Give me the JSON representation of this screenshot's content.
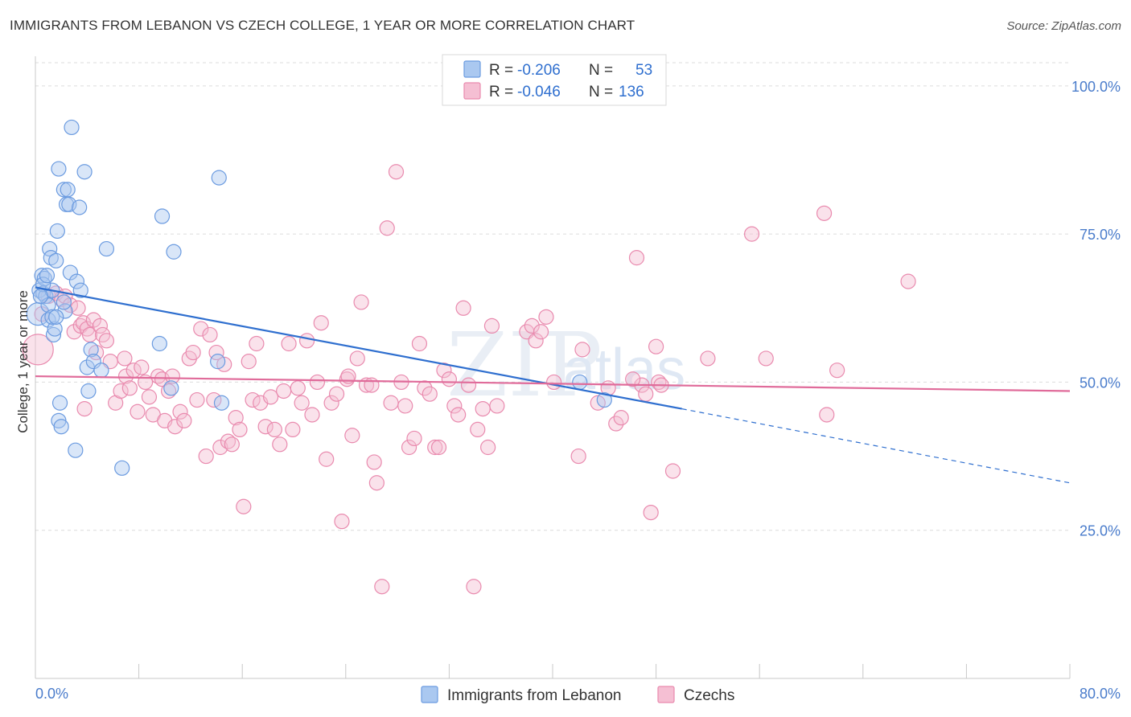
{
  "title": "IMMIGRANTS FROM LEBANON VS CZECH COLLEGE, 1 YEAR OR MORE CORRELATION CHART",
  "source": "Source: ZipAtlas.com",
  "watermark": {
    "zip": "ZIP",
    "atlas": "atlas"
  },
  "colors": {
    "blue": "#6b9be0",
    "blue_fill": "#aac8f0",
    "pink": "#e98aae",
    "pink_fill": "#f5bfd3",
    "blue_line": "#2f6fcf",
    "pink_line": "#e06b9a",
    "axis_text": "#4a7ccb"
  },
  "legend": {
    "rows": [
      {
        "r_label": "R = ",
        "r_value": "-0.206",
        "n_label": "N = ",
        "n_value": "53"
      },
      {
        "r_label": "R = ",
        "r_value": "-0.046",
        "n_label": "N = ",
        "n_value": "136"
      }
    ]
  },
  "chart_data": {
    "type": "scatter",
    "title": "IMMIGRANTS FROM LEBANON VS CZECH COLLEGE, 1 YEAR OR MORE CORRELATION CHART",
    "xlabel": "",
    "ylabel": "College, 1 year or more",
    "xlim": [
      0,
      80
    ],
    "ylim": [
      0,
      105
    ],
    "x_tick_labels": [
      "0.0%",
      "80.0%"
    ],
    "y_tick_labels": [
      "25.0%",
      "50.0%",
      "75.0%",
      "100.0%"
    ],
    "y_ticks": [
      25,
      50,
      75,
      100
    ],
    "grid": true,
    "legend_position": "top-center",
    "series": [
      {
        "name": "Immigrants from Lebanon",
        "color": "#6b9be0",
        "points": [
          [
            0.2,
            61.5
          ],
          [
            0.3,
            65.5
          ],
          [
            0.5,
            68
          ],
          [
            0.6,
            65
          ],
          [
            0.7,
            67.5
          ],
          [
            0.8,
            64.5
          ],
          [
            1.0,
            60.5
          ],
          [
            1.1,
            72.5
          ],
          [
            1.2,
            71
          ],
          [
            1.3,
            65.5
          ],
          [
            1.4,
            58
          ],
          [
            1.5,
            59
          ],
          [
            1.6,
            70.5
          ],
          [
            1.7,
            75.5
          ],
          [
            1.8,
            86
          ],
          [
            1.8,
            43.5
          ],
          [
            1.9,
            46.5
          ],
          [
            2.0,
            42.5
          ],
          [
            2.2,
            82.5
          ],
          [
            2.3,
            62
          ],
          [
            2.4,
            80
          ],
          [
            2.5,
            82.5
          ],
          [
            2.6,
            80
          ],
          [
            2.7,
            68.5
          ],
          [
            2.8,
            93
          ],
          [
            3.1,
            38.5
          ],
          [
            3.2,
            67
          ],
          [
            3.4,
            79.5
          ],
          [
            3.5,
            65.5
          ],
          [
            3.8,
            85.5
          ],
          [
            4.0,
            52.5
          ],
          [
            4.1,
            48.5
          ],
          [
            4.3,
            55.5
          ],
          [
            4.5,
            53.5
          ],
          [
            5.1,
            52
          ],
          [
            5.5,
            72.5
          ],
          [
            6.7,
            35.5
          ],
          [
            9.6,
            56.5
          ],
          [
            9.8,
            78
          ],
          [
            10.5,
            49
          ],
          [
            10.7,
            72
          ],
          [
            14.1,
            53.5
          ],
          [
            14.2,
            84.5
          ],
          [
            14.4,
            46.5
          ],
          [
            42.1,
            50
          ],
          [
            44.0,
            47
          ],
          [
            0.6,
            66.5
          ],
          [
            1.0,
            63
          ],
          [
            1.3,
            61
          ],
          [
            0.9,
            68
          ],
          [
            2.2,
            63.5
          ],
          [
            1.6,
            61
          ],
          [
            0.4,
            64.5
          ]
        ],
        "trend": {
          "x": [
            0,
            50
          ],
          "y": [
            66,
            45.5
          ]
        },
        "trend_ext": {
          "x": [
            50,
            80
          ],
          "y": [
            45.5,
            33
          ]
        }
      },
      {
        "name": "Czechs",
        "color": "#e98aae",
        "points": [
          [
            0.2,
            55.5
          ],
          [
            0.5,
            61.5
          ],
          [
            1.0,
            64.5
          ],
          [
            1.6,
            65
          ],
          [
            2.0,
            64
          ],
          [
            2.3,
            64.5
          ],
          [
            2.7,
            63
          ],
          [
            3.0,
            58.5
          ],
          [
            3.3,
            62.5
          ],
          [
            3.5,
            59.5
          ],
          [
            3.7,
            60
          ],
          [
            4.0,
            59
          ],
          [
            4.2,
            58
          ],
          [
            4.5,
            60.5
          ],
          [
            4.7,
            55
          ],
          [
            5.0,
            59.5
          ],
          [
            5.2,
            58
          ],
          [
            5.5,
            57
          ],
          [
            5.8,
            53.5
          ],
          [
            6.2,
            46.5
          ],
          [
            6.6,
            48.5
          ],
          [
            7.0,
            51
          ],
          [
            7.3,
            49
          ],
          [
            7.6,
            52
          ],
          [
            7.9,
            45
          ],
          [
            8.2,
            52.5
          ],
          [
            8.5,
            50
          ],
          [
            8.8,
            47.5
          ],
          [
            9.1,
            44.5
          ],
          [
            9.5,
            51
          ],
          [
            9.8,
            50.5
          ],
          [
            10.0,
            43.5
          ],
          [
            10.3,
            48.5
          ],
          [
            10.6,
            51
          ],
          [
            10.8,
            42.5
          ],
          [
            11.2,
            45
          ],
          [
            11.5,
            43.5
          ],
          [
            11.9,
            54
          ],
          [
            12.2,
            55
          ],
          [
            12.5,
            47
          ],
          [
            12.8,
            59
          ],
          [
            13.2,
            37.5
          ],
          [
            13.5,
            58
          ],
          [
            13.8,
            47
          ],
          [
            14.0,
            55
          ],
          [
            14.3,
            39
          ],
          [
            14.6,
            53
          ],
          [
            14.9,
            40
          ],
          [
            15.2,
            39.5
          ],
          [
            15.5,
            44
          ],
          [
            15.8,
            42
          ],
          [
            16.1,
            29
          ],
          [
            16.5,
            53.5
          ],
          [
            16.8,
            47
          ],
          [
            17.1,
            56.5
          ],
          [
            17.4,
            46.5
          ],
          [
            17.8,
            42.5
          ],
          [
            18.2,
            47.5
          ],
          [
            18.5,
            42
          ],
          [
            18.9,
            39.5
          ],
          [
            19.2,
            48.5
          ],
          [
            19.6,
            56.5
          ],
          [
            19.9,
            42
          ],
          [
            20.3,
            49
          ],
          [
            20.6,
            46.5
          ],
          [
            21.0,
            57
          ],
          [
            21.4,
            44.5
          ],
          [
            21.8,
            50
          ],
          [
            22.1,
            60
          ],
          [
            22.5,
            37
          ],
          [
            22.9,
            46.5
          ],
          [
            23.3,
            48
          ],
          [
            23.7,
            26.5
          ],
          [
            24.1,
            50.5
          ],
          [
            24.5,
            41
          ],
          [
            24.9,
            54
          ],
          [
            25.2,
            63.5
          ],
          [
            25.6,
            49.5
          ],
          [
            26.0,
            49.5
          ],
          [
            26.4,
            33
          ],
          [
            26.8,
            15.5
          ],
          [
            27.2,
            76
          ],
          [
            27.5,
            46.5
          ],
          [
            27.9,
            85.5
          ],
          [
            28.3,
            50
          ],
          [
            28.6,
            46
          ],
          [
            28.9,
            39
          ],
          [
            29.3,
            40.5
          ],
          [
            29.7,
            56.5
          ],
          [
            30.1,
            49
          ],
          [
            30.5,
            48
          ],
          [
            30.9,
            39
          ],
          [
            31.2,
            39
          ],
          [
            31.6,
            52
          ],
          [
            32.0,
            50.5
          ],
          [
            32.4,
            46
          ],
          [
            32.7,
            44.5
          ],
          [
            33.1,
            62.5
          ],
          [
            33.5,
            49.5
          ],
          [
            33.9,
            15.5
          ],
          [
            34.2,
            42
          ],
          [
            34.6,
            45.5
          ],
          [
            35.0,
            39
          ],
          [
            35.3,
            59.5
          ],
          [
            35.7,
            46
          ],
          [
            38.0,
            58.5
          ],
          [
            38.4,
            59.5
          ],
          [
            38.7,
            57
          ],
          [
            39.1,
            58.5
          ],
          [
            39.5,
            61
          ],
          [
            40.1,
            50
          ],
          [
            42.0,
            37.5
          ],
          [
            42.3,
            55.5
          ],
          [
            43.5,
            46.5
          ],
          [
            44.9,
            43
          ],
          [
            45.3,
            44
          ],
          [
            46.5,
            71
          ],
          [
            46.9,
            49.5
          ],
          [
            47.2,
            48
          ],
          [
            47.6,
            28
          ],
          [
            48.0,
            56
          ],
          [
            48.2,
            50
          ],
          [
            48.4,
            49.5
          ],
          [
            49.3,
            35
          ],
          [
            52.0,
            54
          ],
          [
            55.4,
            75
          ],
          [
            56.5,
            54
          ],
          [
            61.0,
            78.5
          ],
          [
            61.2,
            44.5
          ],
          [
            62.0,
            52
          ],
          [
            67.5,
            67
          ],
          [
            44.3,
            49
          ],
          [
            46.2,
            50.5
          ],
          [
            26.2,
            36.5
          ],
          [
            3.8,
            45.5
          ],
          [
            6.9,
            54
          ],
          [
            24.2,
            51
          ]
        ],
        "trend": {
          "x": [
            0,
            80
          ],
          "y": [
            51,
            48.5
          ]
        }
      }
    ]
  },
  "bottom_legend": [
    {
      "label": "Immigrants from Lebanon"
    },
    {
      "label": "Czechs"
    }
  ]
}
